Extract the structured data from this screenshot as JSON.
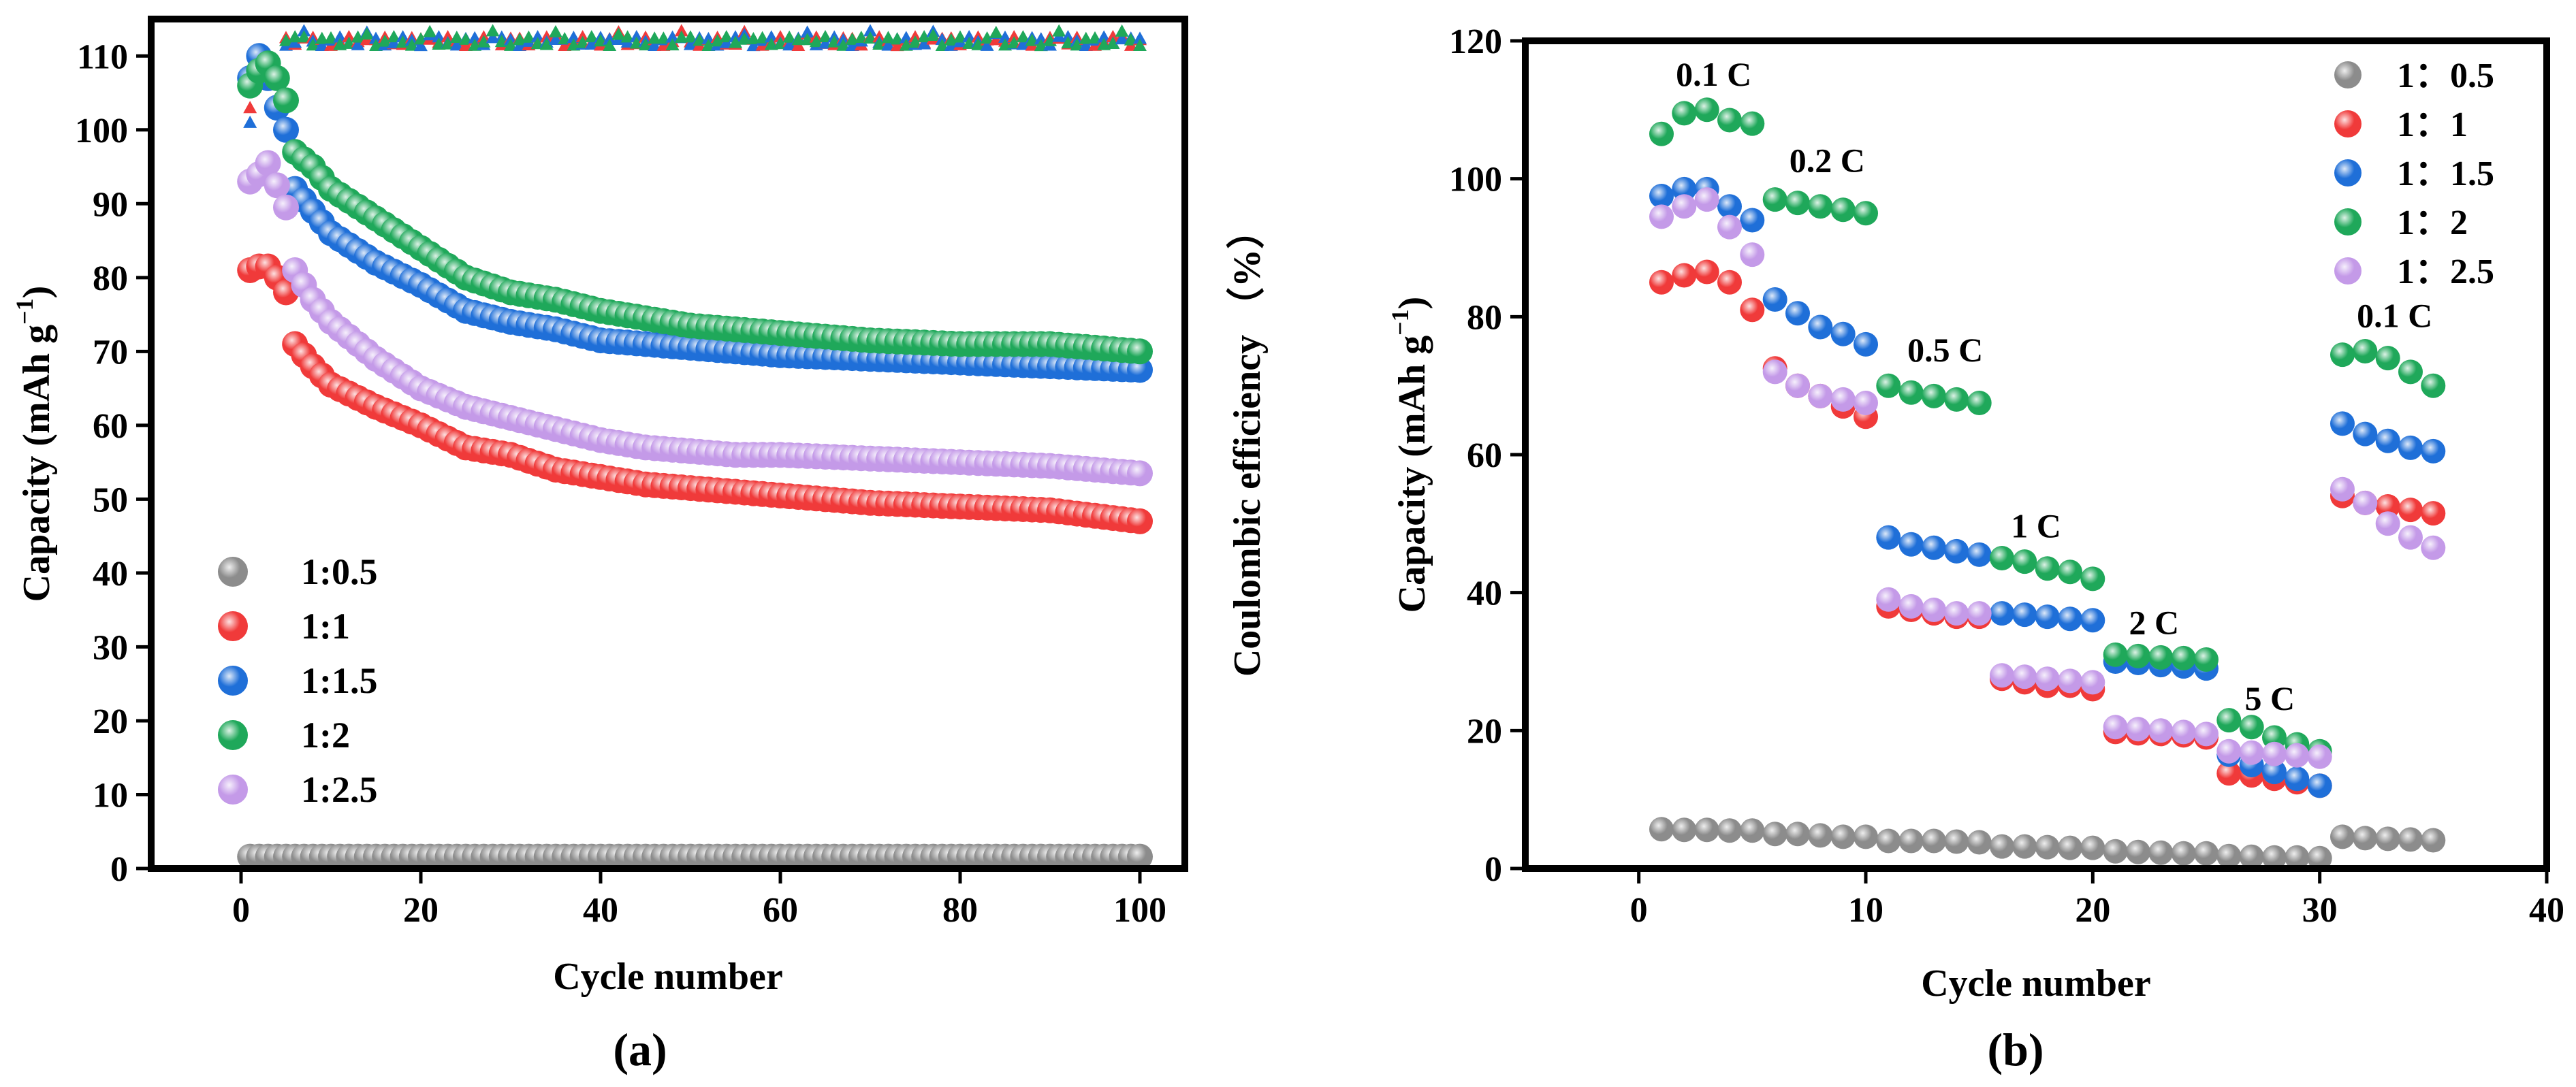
{
  "figure": {
    "panel_a_label": "(a)",
    "panel_b_label": "(b)"
  },
  "colors": {
    "1:0.5": "#8c8c8c",
    "1:1": "#f03a3a",
    "1:1.5": "#1f6fd8",
    "1:2": "#1fa85a",
    "1:2.5": "#c49ae8"
  },
  "chart_data": [
    {
      "type": "scatter",
      "panel": "a",
      "title": "",
      "xlabel": "Cycle number",
      "ylabel_prefix": "Capacity (mAh g",
      "ylabel_sup": "−1",
      "ylabel_suffix": ")",
      "y2label": "Coulombic efficiency （%）",
      "xlim": [
        -10,
        105
      ],
      "ylim": [
        0,
        115
      ],
      "xticks": [
        0,
        20,
        40,
        60,
        80,
        100
      ],
      "yticks": [
        0,
        10,
        20,
        30,
        40,
        50,
        60,
        70,
        80,
        90,
        100,
        110
      ],
      "legend_position": "lower-left",
      "legend": [
        "1:0.5",
        "1:1",
        "1:1.5",
        "1:2",
        "1:2.5"
      ],
      "series": [
        {
          "name": "1:0.5",
          "color_key": "1:0.5",
          "knots": [
            [
              1,
              1.6
            ],
            [
              100,
              1.6
            ]
          ]
        },
        {
          "name": "1:1",
          "color_key": "1:1",
          "knots": [
            [
              1,
              81
            ],
            [
              2,
              81.5
            ],
            [
              3,
              81.5
            ],
            [
              4,
              80
            ],
            [
              5,
              78
            ],
            [
              6,
              71
            ],
            [
              8,
              68
            ],
            [
              10,
              65.5
            ],
            [
              15,
              62.5
            ],
            [
              20,
              60
            ],
            [
              25,
              57
            ],
            [
              30,
              56
            ],
            [
              35,
              54
            ],
            [
              40,
              53
            ],
            [
              45,
              52
            ],
            [
              50,
              51.5
            ],
            [
              55,
              51
            ],
            [
              60,
              50.5
            ],
            [
              65,
              50
            ],
            [
              70,
              49.5
            ],
            [
              80,
              49
            ],
            [
              90,
              48.5
            ],
            [
              100,
              47
            ]
          ]
        },
        {
          "name": "1:1.5",
          "color_key": "1:1.5",
          "knots": [
            [
              1,
              107
            ],
            [
              2,
              110
            ],
            [
              3,
              107
            ],
            [
              4,
              103
            ],
            [
              5,
              100
            ],
            [
              6,
              92
            ],
            [
              8,
              89
            ],
            [
              10,
              86
            ],
            [
              15,
              82
            ],
            [
              20,
              79
            ],
            [
              25,
              75.5
            ],
            [
              30,
              74
            ],
            [
              35,
              73
            ],
            [
              40,
              71.5
            ],
            [
              45,
              71
            ],
            [
              50,
              70.5
            ],
            [
              60,
              69.5
            ],
            [
              70,
              69
            ],
            [
              80,
              68.5
            ],
            [
              90,
              68
            ],
            [
              100,
              67.5
            ]
          ]
        },
        {
          "name": "1:2",
          "color_key": "1:2",
          "knots": [
            [
              1,
              106
            ],
            [
              2,
              108
            ],
            [
              3,
              109
            ],
            [
              4,
              107
            ],
            [
              5,
              104
            ],
            [
              6,
              97
            ],
            [
              8,
              95
            ],
            [
              10,
              92
            ],
            [
              15,
              88
            ],
            [
              20,
              84
            ],
            [
              25,
              80
            ],
            [
              30,
              78
            ],
            [
              35,
              77
            ],
            [
              40,
              75.5
            ],
            [
              45,
              74.5
            ],
            [
              50,
              73.5
            ],
            [
              60,
              72.5
            ],
            [
              70,
              71.5
            ],
            [
              80,
              71
            ],
            [
              90,
              71
            ],
            [
              100,
              70
            ]
          ]
        },
        {
          "name": "1:2.5",
          "color_key": "1:2.5",
          "knots": [
            [
              1,
              93
            ],
            [
              2,
              94
            ],
            [
              3,
              95.5
            ],
            [
              4,
              92.5
            ],
            [
              5,
              89.5
            ],
            [
              6,
              81
            ],
            [
              8,
              77
            ],
            [
              10,
              74
            ],
            [
              15,
              69
            ],
            [
              20,
              65
            ],
            [
              25,
              62.5
            ],
            [
              30,
              61
            ],
            [
              35,
              59.5
            ],
            [
              40,
              58
            ],
            [
              45,
              57
            ],
            [
              50,
              56.5
            ],
            [
              55,
              56
            ],
            [
              60,
              56
            ],
            [
              70,
              55.5
            ],
            [
              80,
              55
            ],
            [
              90,
              54.5
            ],
            [
              100,
              53.5
            ]
          ]
        }
      ],
      "efficiency_markers": {
        "marker": "triangle",
        "start_points": [
          {
            "color_key": "1:2",
            "x": 1,
            "y": 107
          },
          {
            "color_key": "1:1.5",
            "x": 1,
            "y": 101
          },
          {
            "color_key": "1:1",
            "x": 1,
            "y": 103
          },
          {
            "color_key": "1:2",
            "x": 2,
            "y": 110
          },
          {
            "color_key": "1:2.5",
            "x": 3,
            "y": 109
          },
          {
            "color_key": "1:1.5",
            "x": 4,
            "y": 108
          }
        ],
        "steady_value": 112,
        "x_range": [
          5,
          100
        ]
      }
    },
    {
      "type": "scatter",
      "panel": "b",
      "title": "",
      "xlabel": "Cycle number",
      "ylabel_prefix": "Capacity (mAh g",
      "ylabel_sup": "−1",
      "ylabel_suffix": ")",
      "xlim": [
        -5,
        40
      ],
      "ylim": [
        0,
        120
      ],
      "xticks": [
        0,
        10,
        20,
        30,
        40
      ],
      "yticks": [
        0,
        20,
        40,
        60,
        80,
        100,
        120
      ],
      "legend_position": "top-right",
      "legend": [
        "1：0.5",
        "1：1",
        "1：1.5",
        "1：2",
        "1：2.5"
      ],
      "annotations": [
        {
          "text": "0.1 C",
          "x": 3.3,
          "y": 113.5
        },
        {
          "text": "0.2 C",
          "x": 8.3,
          "y": 101
        },
        {
          "text": "0.5 C",
          "x": 13.5,
          "y": 73.5
        },
        {
          "text": "1 C",
          "x": 17.5,
          "y": 48
        },
        {
          "text": "2 C",
          "x": 22.7,
          "y": 34
        },
        {
          "text": "5 C",
          "x": 27.8,
          "y": 23
        },
        {
          "text": "0.1 C",
          "x": 33.3,
          "y": 78.5
        }
      ],
      "series": [
        {
          "name": "1：0.5",
          "color_key": "1:0.5",
          "values": [
            5.7,
            5.6,
            5.6,
            5.5,
            5.5,
            5,
            5,
            4.8,
            4.6,
            4.6,
            4,
            4,
            4,
            3.9,
            3.8,
            3.2,
            3.2,
            3.1,
            3,
            3,
            2.5,
            2.4,
            2.3,
            2.2,
            2.2,
            1.8,
            1.7,
            1.6,
            1.6,
            1.5,
            4.6,
            4.4,
            4.3,
            4.2,
            4.1
          ]
        },
        {
          "name": "1：1",
          "color_key": "1:1",
          "values": [
            85,
            86,
            86.5,
            85,
            81,
            72.5,
            70,
            68.5,
            67,
            65.5,
            38,
            37.5,
            37,
            36.5,
            36.5,
            27.5,
            27,
            26.5,
            26.5,
            26,
            19.8,
            19.6,
            19.5,
            19.3,
            19,
            13.8,
            13.5,
            13,
            12.5,
            12,
            54,
            53,
            52.5,
            52,
            51.5
          ]
        },
        {
          "name": "1：1.5",
          "color_key": "1:1.5",
          "values": [
            97.5,
            98.5,
            98.5,
            96,
            94,
            82.5,
            80.5,
            78.5,
            77.5,
            76,
            48,
            47,
            46.5,
            46,
            45.5,
            37,
            36.8,
            36.5,
            36.2,
            36,
            30,
            29.8,
            29.5,
            29.3,
            29,
            16.5,
            15,
            14,
            13,
            12,
            64.5,
            63,
            62,
            61,
            60.5
          ]
        },
        {
          "name": "1：2",
          "color_key": "1:2",
          "values": [
            106.5,
            109.5,
            110,
            108.5,
            108,
            97,
            96.5,
            96,
            95.5,
            95,
            70,
            69,
            68.5,
            68,
            67.5,
            45,
            44.5,
            43.5,
            43,
            42,
            31,
            30.8,
            30.6,
            30.5,
            30.3,
            21.5,
            20.5,
            19,
            18,
            17,
            74.5,
            75,
            74,
            72,
            70
          ]
        },
        {
          "name": "1：2.5",
          "color_key": "1:2.5",
          "values": [
            94.5,
            96,
            97,
            93,
            89,
            72,
            70,
            68.5,
            68,
            67.5,
            39,
            38,
            37.5,
            37,
            37,
            28,
            27.8,
            27.5,
            27.2,
            27,
            20.5,
            20.2,
            20,
            19.8,
            19.5,
            17,
            16.8,
            16.6,
            16.4,
            16.2,
            55,
            53,
            50,
            48,
            46.5
          ]
        }
      ]
    }
  ]
}
